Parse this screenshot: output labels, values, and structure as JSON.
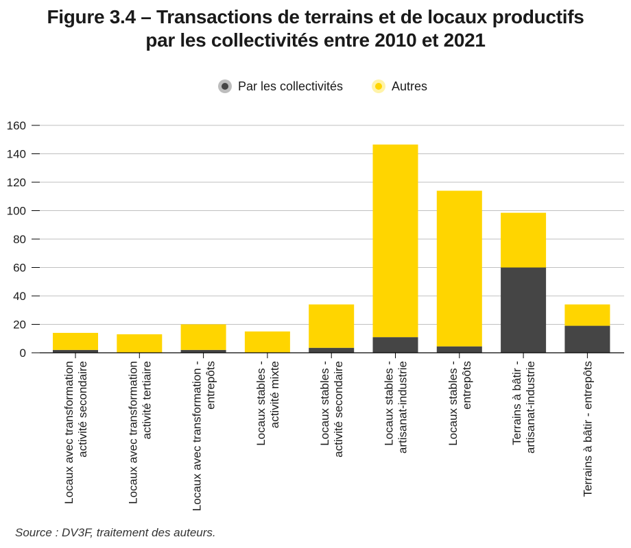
{
  "title_line1": "Figure 3.4 – Transactions de terrains et de locaux productifs",
  "title_line2": "par les collectivités entre 2010 et 2021",
  "source": "Source : DV3F, traitement des auteurs.",
  "colors": {
    "collectivites": "#454545",
    "autres": "#ffd500",
    "grid": "#bfbfbf",
    "axis": "#000000"
  },
  "chart_data": {
    "type": "bar",
    "stacked": true,
    "categories": [
      [
        "Locaux avec transformation",
        "activité secondaire"
      ],
      [
        "Locaux avec transformation",
        "activité tertiaire"
      ],
      [
        "Locaux avec transformation -",
        "entrepôts"
      ],
      [
        "Locaux stables -",
        "activité mixte"
      ],
      [
        "Locaux stables -",
        "activité secondaire"
      ],
      [
        "Locaux stables -",
        "artisanat-industrie"
      ],
      [
        "Locaux stables -",
        "entrepôts"
      ],
      [
        "Terrains à bâtir -",
        "artisanat-industrie"
      ],
      [
        "Terrains à bâtir - entrepôts"
      ]
    ],
    "series": [
      {
        "name": "Par les collectivités",
        "values": [
          2,
          0,
          2,
          0,
          3.5,
          11,
          4.5,
          60,
          19
        ]
      },
      {
        "name": "Autres",
        "values": [
          12,
          13,
          18,
          15,
          30.5,
          135.5,
          109.5,
          38.5,
          15
        ]
      }
    ],
    "ylim": [
      0,
      160
    ],
    "yticks": [
      0,
      20,
      40,
      60,
      80,
      100,
      120,
      140,
      160
    ],
    "grid": true,
    "legend": "top-center"
  }
}
